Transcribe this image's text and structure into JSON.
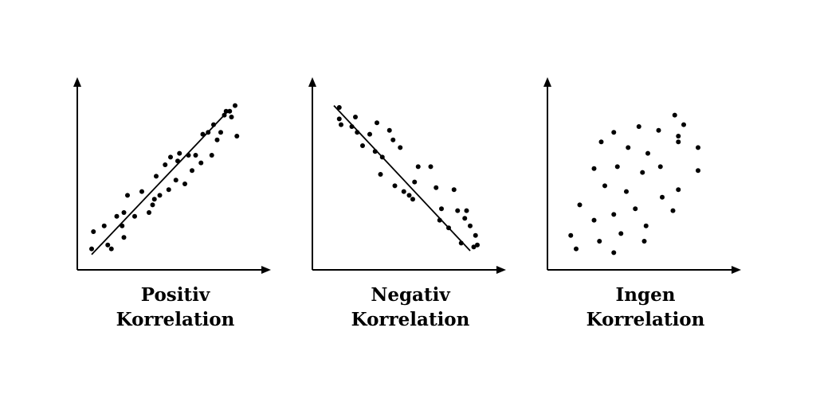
{
  "colors": {
    "ink": "#000000",
    "background": "#ffffff"
  },
  "chart_data": [
    {
      "type": "scatter",
      "title": "",
      "caption_lines": [
        "Positiv",
        "Korrelation"
      ],
      "xlabel": "",
      "ylabel": "",
      "xlim": [
        0,
        10
      ],
      "ylim": [
        0,
        10
      ],
      "grid": false,
      "legend": "none",
      "trend_line": [
        [
          0.8,
          0.8
        ],
        [
          8.5,
          8.4
        ]
      ],
      "points": [
        [
          0.9,
          2.0
        ],
        [
          0.8,
          1.1
        ],
        [
          1.7,
          1.3
        ],
        [
          1.9,
          1.1
        ],
        [
          1.5,
          2.3
        ],
        [
          2.2,
          2.8
        ],
        [
          2.6,
          1.7
        ],
        [
          2.5,
          2.3
        ],
        [
          2.8,
          3.9
        ],
        [
          2.6,
          3.0
        ],
        [
          3.2,
          2.8
        ],
        [
          3.6,
          4.1
        ],
        [
          4.0,
          3.0
        ],
        [
          4.2,
          3.4
        ],
        [
          4.3,
          3.7
        ],
        [
          4.4,
          4.9
        ],
        [
          4.6,
          3.9
        ],
        [
          4.9,
          5.5
        ],
        [
          5.1,
          4.2
        ],
        [
          5.2,
          5.9
        ],
        [
          5.5,
          4.7
        ],
        [
          5.6,
          5.7
        ],
        [
          5.7,
          6.1
        ],
        [
          6.0,
          4.5
        ],
        [
          6.2,
          6.0
        ],
        [
          6.4,
          5.2
        ],
        [
          6.6,
          6.0
        ],
        [
          6.9,
          5.6
        ],
        [
          7.0,
          7.1
        ],
        [
          7.3,
          7.2
        ],
        [
          7.5,
          6.0
        ],
        [
          7.6,
          7.6
        ],
        [
          7.8,
          6.8
        ],
        [
          8.0,
          7.2
        ],
        [
          8.2,
          8.1
        ],
        [
          8.3,
          8.3
        ],
        [
          8.5,
          8.3
        ],
        [
          8.6,
          8.0
        ],
        [
          8.8,
          8.6
        ],
        [
          8.9,
          7.0
        ]
      ]
    },
    {
      "type": "scatter",
      "title": "",
      "caption_lines": [
        "Negativ",
        "Korrelation"
      ],
      "xlabel": "",
      "ylabel": "",
      "xlim": [
        0,
        10
      ],
      "ylim": [
        0,
        10
      ],
      "grid": false,
      "legend": "none",
      "trend_line": [
        [
          1.2,
          8.6
        ],
        [
          8.8,
          1.0
        ]
      ],
      "points": [
        [
          1.5,
          8.5
        ],
        [
          1.6,
          7.6
        ],
        [
          1.5,
          7.9
        ],
        [
          2.2,
          7.5
        ],
        [
          2.4,
          8.0
        ],
        [
          2.5,
          7.2
        ],
        [
          2.8,
          6.5
        ],
        [
          3.2,
          7.1
        ],
        [
          3.5,
          6.2
        ],
        [
          3.6,
          7.7
        ],
        [
          3.9,
          5.9
        ],
        [
          3.8,
          5.0
        ],
        [
          4.3,
          7.3
        ],
        [
          4.5,
          6.8
        ],
        [
          4.9,
          6.4
        ],
        [
          4.6,
          4.4
        ],
        [
          5.1,
          4.1
        ],
        [
          5.4,
          3.9
        ],
        [
          5.6,
          3.7
        ],
        [
          5.7,
          4.6
        ],
        [
          5.9,
          5.4
        ],
        [
          6.6,
          5.4
        ],
        [
          6.9,
          4.3
        ],
        [
          7.1,
          2.6
        ],
        [
          7.2,
          3.2
        ],
        [
          7.6,
          2.2
        ],
        [
          7.9,
          4.2
        ],
        [
          8.1,
          3.1
        ],
        [
          8.3,
          1.4
        ],
        [
          8.5,
          2.7
        ],
        [
          8.6,
          3.1
        ],
        [
          8.8,
          2.3
        ],
        [
          9.0,
          1.2
        ],
        [
          9.1,
          1.8
        ],
        [
          9.2,
          1.3
        ]
      ]
    },
    {
      "type": "scatter",
      "title": "",
      "caption_lines": [
        "Ingen",
        "Korrelation"
      ],
      "xlabel": "",
      "ylabel": "",
      "xlim": [
        0,
        10
      ],
      "ylim": [
        0,
        10
      ],
      "grid": false,
      "legend": "none",
      "trend_line": null,
      "points": [
        [
          1.3,
          1.8
        ],
        [
          1.6,
          1.1
        ],
        [
          1.8,
          3.4
        ],
        [
          2.6,
          5.3
        ],
        [
          2.6,
          2.6
        ],
        [
          2.9,
          1.5
        ],
        [
          3.2,
          4.4
        ],
        [
          3.0,
          6.7
        ],
        [
          3.7,
          7.2
        ],
        [
          3.7,
          2.9
        ],
        [
          3.7,
          0.9
        ],
        [
          3.9,
          5.4
        ],
        [
          4.1,
          1.9
        ],
        [
          4.5,
          6.4
        ],
        [
          4.4,
          4.1
        ],
        [
          4.9,
          3.2
        ],
        [
          5.1,
          7.5
        ],
        [
          5.3,
          5.1
        ],
        [
          5.4,
          1.5
        ],
        [
          5.6,
          6.1
        ],
        [
          5.5,
          2.3
        ],
        [
          6.2,
          7.3
        ],
        [
          6.3,
          5.4
        ],
        [
          6.4,
          3.8
        ],
        [
          7.0,
          3.1
        ],
        [
          7.3,
          6.7
        ],
        [
          7.3,
          7.0
        ],
        [
          7.3,
          4.2
        ],
        [
          7.6,
          7.6
        ],
        [
          8.4,
          6.4
        ],
        [
          8.4,
          5.2
        ],
        [
          7.1,
          8.1
        ]
      ]
    }
  ]
}
